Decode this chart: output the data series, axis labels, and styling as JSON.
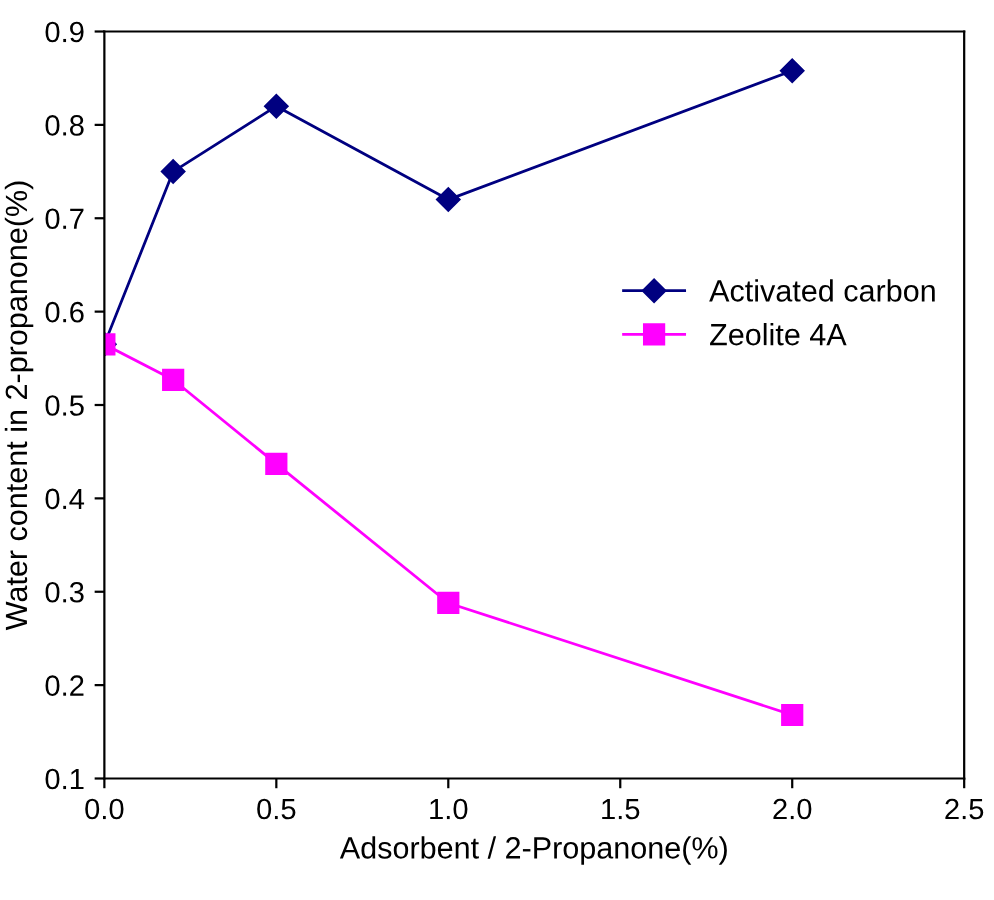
{
  "chart_data": {
    "type": "line",
    "xlabel": "Adsorbent / 2-Propanone(%)",
    "ylabel": "Water content in 2-propanone(%)",
    "xlim": [
      0,
      2.5
    ],
    "xticks": [
      {
        "value": 0,
        "label": "0.0"
      },
      {
        "value": 0.5,
        "label": "0.5"
      },
      {
        "value": 1,
        "label": "1.0"
      },
      {
        "value": 1.5,
        "label": "1.5"
      },
      {
        "value": 2,
        "label": "2.0"
      },
      {
        "value": 2.5,
        "label": "2.5"
      }
    ],
    "ylim": [
      0.1,
      0.9
    ],
    "yticks": [
      0.1,
      0.2,
      0.3,
      0.4,
      0.5,
      0.6,
      0.7,
      0.8,
      0.9
    ],
    "grid": false,
    "legend": "right",
    "series": [
      {
        "name": "Activated carbon",
        "color": "#000080",
        "marker": "diamond",
        "x": [
          0,
          0.2,
          0.5,
          1.0,
          2.0
        ],
        "values": [
          0.565,
          0.75,
          0.82,
          0.72,
          0.858
        ]
      },
      {
        "name": "Zeolite 4A",
        "color": "#ff00ff",
        "marker": "square",
        "x": [
          0,
          0.2,
          0.5,
          1.0,
          2.0
        ],
        "values": [
          0.565,
          0.527,
          0.437,
          0.288,
          0.168
        ]
      }
    ]
  }
}
